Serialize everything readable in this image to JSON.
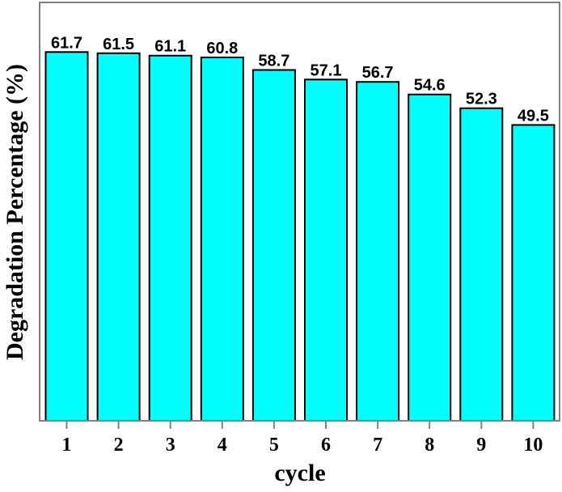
{
  "chart_data": {
    "type": "bar",
    "title": "",
    "xlabel": "cycle",
    "ylabel": "Degradation Percentage (%)",
    "categories": [
      "1",
      "2",
      "3",
      "4",
      "5",
      "6",
      "7",
      "8",
      "9",
      "10"
    ],
    "values": [
      61.7,
      61.5,
      61.1,
      60.8,
      58.7,
      57.1,
      56.7,
      54.6,
      52.3,
      49.5
    ],
    "data_labels": [
      "61.7",
      "61.5",
      "61.1",
      "60.8",
      "58.7",
      "57.1",
      "56.7",
      "54.6",
      "52.3",
      "49.5"
    ],
    "ylim": [
      0,
      70
    ],
    "y_ticks_shown": false,
    "grid": false,
    "legend": null,
    "colors": {
      "bar_fill": "#00FFFF",
      "bar_edge": "#000000",
      "frame": "#808080",
      "text": "#000000"
    }
  }
}
